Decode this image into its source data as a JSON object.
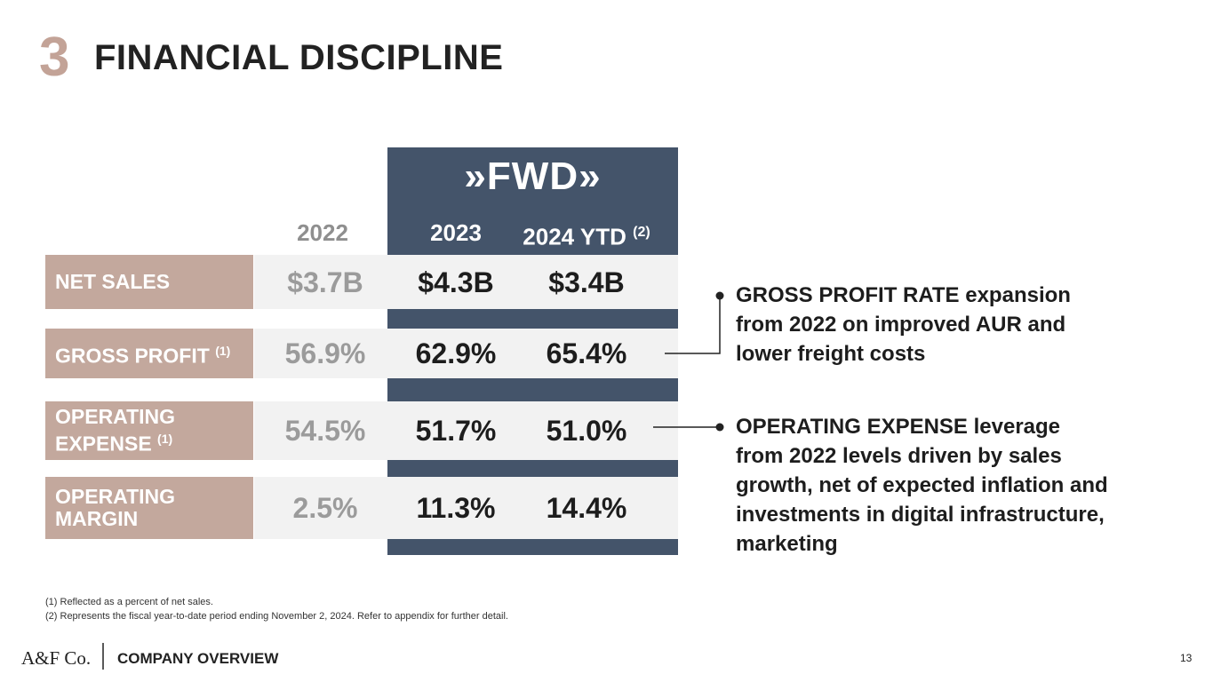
{
  "header": {
    "number": "3",
    "title": "FINANCIAL DISCIPLINE"
  },
  "table": {
    "logo": "FWD",
    "columns": [
      "2022",
      "2023",
      "2024 YTD"
    ],
    "column_note": "(2)",
    "rows": [
      {
        "label": [
          "NET SALES"
        ],
        "note": null,
        "values": [
          "$3.7B",
          "$4.3B",
          "$3.4B"
        ]
      },
      {
        "label": [
          "GROSS PROFIT"
        ],
        "note": "(1)",
        "values": [
          "56.9%",
          "62.9%",
          "65.4%"
        ]
      },
      {
        "label": [
          "OPERATING",
          "EXPENSE"
        ],
        "note": "(1)",
        "values": [
          "54.5%",
          "51.7%",
          "51.0%"
        ]
      },
      {
        "label": [
          "OPERATING",
          "MARGIN"
        ],
        "note": null,
        "values": [
          "2.5%",
          "11.3%",
          "14.4%"
        ]
      }
    ]
  },
  "callouts": [
    {
      "lines": [
        "GROSS PROFIT RATE expansion",
        "from 2022 on improved AUR and",
        "lower freight costs"
      ]
    },
    {
      "lines": [
        "OPERATING EXPENSE leverage",
        "from 2022 levels driven by sales",
        "growth, net of expected inflation and",
        "investments in digital infrastructure,",
        "marketing"
      ]
    }
  ],
  "footnotes": [
    "(1) Reflected as a percent of net sales.",
    "(2) Represents the fiscal year-to-date period ending November 2, 2024. Refer to appendix for further detail."
  ],
  "footer": {
    "brand": "A&F Co.",
    "section": "COMPANY OVERVIEW",
    "page": "13"
  }
}
